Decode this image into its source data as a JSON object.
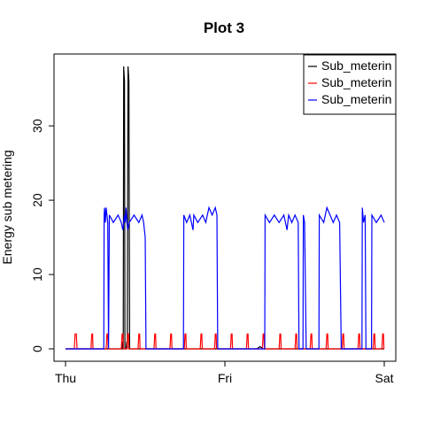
{
  "chart_data": {
    "type": "line",
    "title": "Plot 3",
    "xlabel": "",
    "ylabel": "Energy sub metering",
    "x_tick_labels": [
      "Thu",
      "Fri",
      "Sat"
    ],
    "x_ticks": [
      0,
      1,
      2
    ],
    "xlim": [
      0,
      2
    ],
    "y_ticks": [
      0,
      10,
      20,
      30
    ],
    "ylim": [
      0,
      38
    ],
    "grid": false,
    "legend_position": "top-right",
    "series": [
      {
        "name": "Sub_meterin",
        "color": "#000000",
        "points": [
          [
            0,
            0
          ],
          [
            0.355,
            0
          ],
          [
            0.355,
            1
          ],
          [
            0.357,
            0
          ],
          [
            0.36,
            1
          ],
          [
            0.362,
            0
          ],
          [
            0.365,
            38
          ],
          [
            0.367,
            37
          ],
          [
            0.37,
            36
          ],
          [
            0.373,
            0
          ],
          [
            0.38,
            0
          ],
          [
            0.385,
            1
          ],
          [
            0.388,
            0
          ],
          [
            0.392,
            38
          ],
          [
            0.395,
            37
          ],
          [
            0.398,
            36
          ],
          [
            0.402,
            0
          ],
          [
            0.41,
            0
          ],
          [
            1.2,
            0
          ],
          [
            1.22,
            0.3
          ],
          [
            1.24,
            0
          ],
          [
            2,
            0
          ]
        ]
      },
      {
        "name": "Sub_meterin",
        "color": "#ff0000",
        "points": [
          [
            0,
            0
          ],
          [
            0.055,
            0
          ],
          [
            0.058,
            1
          ],
          [
            0.06,
            2
          ],
          [
            0.068,
            2
          ],
          [
            0.07,
            1
          ],
          [
            0.072,
            0
          ],
          [
            0.16,
            0
          ],
          [
            0.162,
            1
          ],
          [
            0.165,
            2
          ],
          [
            0.17,
            2
          ],
          [
            0.172,
            0
          ],
          [
            0.255,
            0
          ],
          [
            0.258,
            1
          ],
          [
            0.26,
            2
          ],
          [
            0.265,
            2
          ],
          [
            0.268,
            0
          ],
          [
            0.35,
            0
          ],
          [
            0.352,
            1
          ],
          [
            0.355,
            2
          ],
          [
            0.36,
            2
          ],
          [
            0.362,
            0
          ],
          [
            0.385,
            0
          ],
          [
            0.388,
            1
          ],
          [
            0.39,
            2
          ],
          [
            0.395,
            2
          ],
          [
            0.398,
            0
          ],
          [
            0.455,
            0
          ],
          [
            0.458,
            1
          ],
          [
            0.46,
            2
          ],
          [
            0.465,
            2
          ],
          [
            0.468,
            0
          ],
          [
            0.555,
            0
          ],
          [
            0.558,
            1
          ],
          [
            0.56,
            2
          ],
          [
            0.565,
            2
          ],
          [
            0.568,
            0
          ],
          [
            0.655,
            0
          ],
          [
            0.658,
            1
          ],
          [
            0.66,
            2
          ],
          [
            0.665,
            2
          ],
          [
            0.668,
            0
          ],
          [
            0.745,
            0
          ],
          [
            0.748,
            1
          ],
          [
            0.75,
            2
          ],
          [
            0.755,
            2
          ],
          [
            0.758,
            0
          ],
          [
            0.845,
            0
          ],
          [
            0.848,
            1
          ],
          [
            0.85,
            2
          ],
          [
            0.855,
            2
          ],
          [
            0.858,
            0
          ],
          [
            0.935,
            0
          ],
          [
            0.938,
            1
          ],
          [
            0.94,
            2
          ],
          [
            0.945,
            2
          ],
          [
            0.948,
            0
          ],
          [
            1.035,
            0
          ],
          [
            1.038,
            1
          ],
          [
            1.04,
            2
          ],
          [
            1.045,
            2
          ],
          [
            1.048,
            0
          ],
          [
            1.135,
            0
          ],
          [
            1.138,
            1
          ],
          [
            1.14,
            2
          ],
          [
            1.145,
            2
          ],
          [
            1.148,
            0
          ],
          [
            1.235,
            0
          ],
          [
            1.238,
            1
          ],
          [
            1.24,
            2
          ],
          [
            1.245,
            2
          ],
          [
            1.248,
            0
          ],
          [
            1.34,
            0
          ],
          [
            1.343,
            1
          ],
          [
            1.345,
            2
          ],
          [
            1.35,
            2
          ],
          [
            1.353,
            0
          ],
          [
            1.44,
            0
          ],
          [
            1.443,
            1
          ],
          [
            1.445,
            2
          ],
          [
            1.45,
            2
          ],
          [
            1.453,
            0
          ],
          [
            1.535,
            0
          ],
          [
            1.538,
            1
          ],
          [
            1.54,
            2
          ],
          [
            1.545,
            2
          ],
          [
            1.548,
            0
          ],
          [
            1.635,
            0
          ],
          [
            1.638,
            1
          ],
          [
            1.64,
            2
          ],
          [
            1.645,
            2
          ],
          [
            1.648,
            0
          ],
          [
            1.735,
            0
          ],
          [
            1.738,
            1
          ],
          [
            1.74,
            2
          ],
          [
            1.745,
            2
          ],
          [
            1.748,
            0
          ],
          [
            1.835,
            0
          ],
          [
            1.838,
            1
          ],
          [
            1.84,
            2
          ],
          [
            1.845,
            2
          ],
          [
            1.848,
            0
          ],
          [
            1.93,
            0
          ],
          [
            1.933,
            1
          ],
          [
            1.935,
            2
          ],
          [
            1.94,
            2
          ],
          [
            1.943,
            0
          ],
          [
            1.985,
            0
          ],
          [
            1.988,
            1
          ],
          [
            1.99,
            2
          ],
          [
            1.995,
            2
          ],
          [
            1.998,
            0
          ],
          [
            2,
            0
          ]
        ]
      },
      {
        "name": "Sub_meterin",
        "color": "#0000ff",
        "points": [
          [
            0,
            0
          ],
          [
            0.24,
            0
          ],
          [
            0.242,
            18
          ],
          [
            0.245,
            19
          ],
          [
            0.25,
            17
          ],
          [
            0.255,
            19
          ],
          [
            0.26,
            18
          ],
          [
            0.265,
            17
          ],
          [
            0.27,
            0
          ],
          [
            0.275,
            18
          ],
          [
            0.3,
            17
          ],
          [
            0.33,
            18
          ],
          [
            0.35,
            17
          ],
          [
            0.36,
            16
          ],
          [
            0.365,
            17
          ],
          [
            0.37,
            18
          ],
          [
            0.375,
            17
          ],
          [
            0.38,
            19
          ],
          [
            0.385,
            17
          ],
          [
            0.39,
            16
          ],
          [
            0.4,
            17
          ],
          [
            0.43,
            18
          ],
          [
            0.46,
            17
          ],
          [
            0.48,
            18
          ],
          [
            0.49,
            17
          ],
          [
            0.5,
            15
          ],
          [
            0.505,
            0
          ],
          [
            0.74,
            0
          ],
          [
            0.742,
            18
          ],
          [
            0.76,
            17
          ],
          [
            0.78,
            18
          ],
          [
            0.8,
            16
          ],
          [
            0.805,
            18
          ],
          [
            0.83,
            17
          ],
          [
            0.86,
            18
          ],
          [
            0.88,
            17
          ],
          [
            0.9,
            19
          ],
          [
            0.92,
            18
          ],
          [
            0.94,
            19
          ],
          [
            0.95,
            18
          ],
          [
            0.955,
            0
          ],
          [
            1.25,
            0
          ],
          [
            1.252,
            18
          ],
          [
            1.28,
            17
          ],
          [
            1.31,
            18
          ],
          [
            1.34,
            17
          ],
          [
            1.37,
            18
          ],
          [
            1.39,
            16
          ],
          [
            1.4,
            18
          ],
          [
            1.42,
            17
          ],
          [
            1.44,
            18
          ],
          [
            1.46,
            17
          ],
          [
            1.465,
            0
          ],
          [
            1.49,
            0
          ],
          [
            1.492,
            18
          ],
          [
            1.5,
            17
          ],
          [
            1.51,
            0
          ],
          [
            1.59,
            0
          ],
          [
            1.592,
            18
          ],
          [
            1.62,
            17
          ],
          [
            1.64,
            19
          ],
          [
            1.66,
            18
          ],
          [
            1.68,
            17
          ],
          [
            1.7,
            18
          ],
          [
            1.72,
            17
          ],
          [
            1.73,
            0
          ],
          [
            1.86,
            0
          ],
          [
            1.862,
            19
          ],
          [
            1.87,
            17
          ],
          [
            1.88,
            18
          ],
          [
            1.885,
            0
          ],
          [
            1.92,
            0
          ],
          [
            1.922,
            18
          ],
          [
            1.95,
            17
          ],
          [
            1.98,
            18
          ],
          [
            2,
            17
          ]
        ]
      }
    ]
  }
}
